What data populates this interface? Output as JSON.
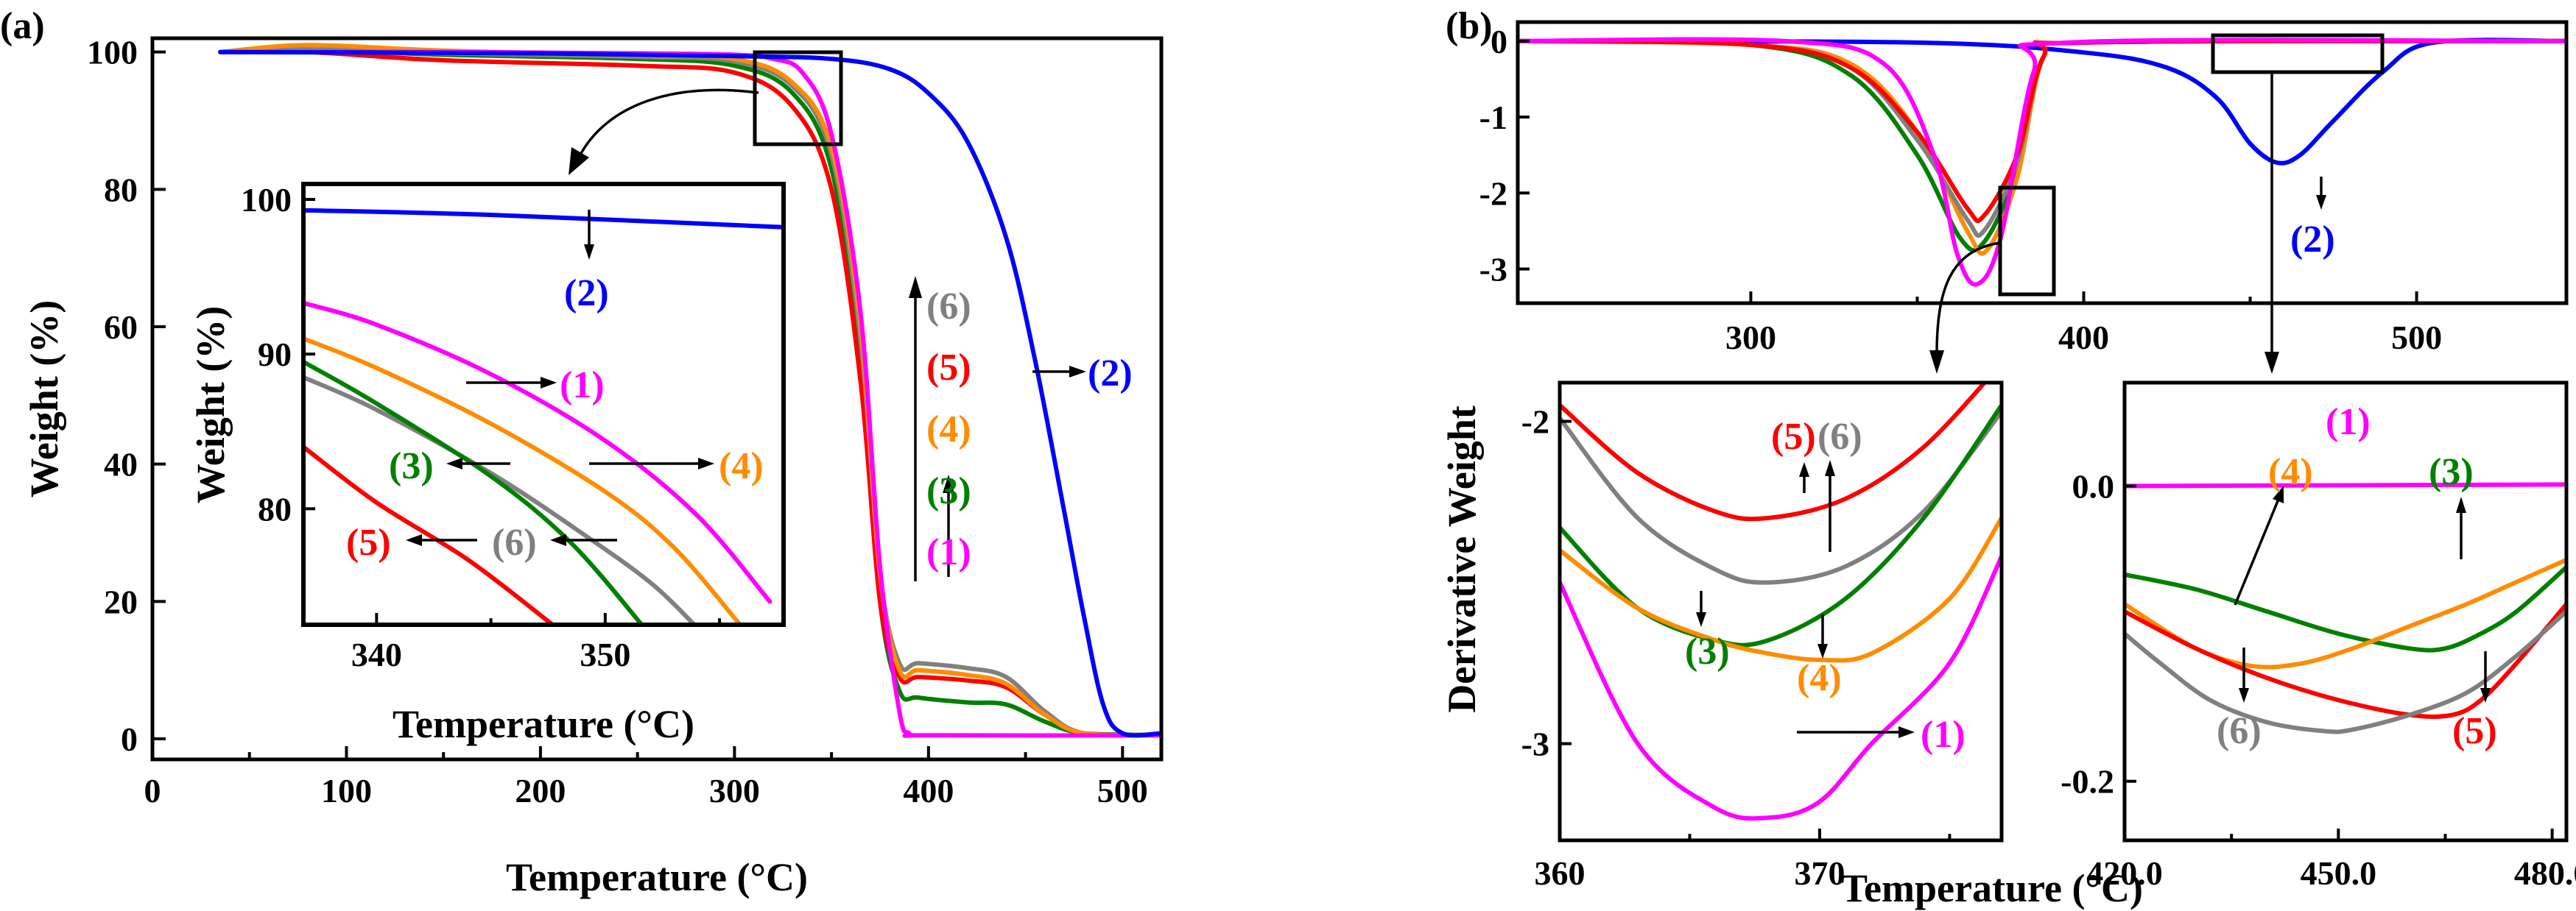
{
  "figure": {
    "panel_a_letter": "(a)",
    "panel_b_letter": "(b)"
  },
  "colors": {
    "1": "#ff00ff",
    "2": "#0000ff",
    "3": "#008000",
    "4": "#ff8c00",
    "5": "#ff0000",
    "6": "#808080"
  },
  "series_labels": [
    "(1)",
    "(2)",
    "(3)",
    "(4)",
    "(5)",
    "(6)"
  ],
  "chart_data": [
    {
      "id": "a-main",
      "type": "line",
      "title": "",
      "xlabel": "Temperature (°C)",
      "ylabel": "Weight (%)",
      "xlim": [
        0,
        520
      ],
      "ylim": [
        -3,
        102
      ],
      "xticks": [
        0,
        100,
        200,
        300,
        400,
        500
      ],
      "yticks": [
        0,
        20,
        40,
        60,
        80,
        100
      ],
      "series": [
        {
          "name": "(3)",
          "x": [
            35,
            80,
            150,
            250,
            300,
            330,
            350,
            365,
            375,
            385,
            395,
            420,
            440,
            460,
            480,
            520
          ],
          "y": [
            100,
            100.3,
            99.6,
            99,
            98,
            94,
            83,
            55,
            20,
            7,
            6,
            5.3,
            5,
            2.5,
            0.8,
            0.6
          ]
        },
        {
          "name": "(5)",
          "x": [
            35,
            80,
            150,
            250,
            300,
            330,
            350,
            365,
            375,
            385,
            395,
            420,
            440,
            460,
            480,
            520
          ],
          "y": [
            100,
            100,
            98.8,
            98,
            97,
            92,
            80,
            52,
            20,
            9,
            9,
            8.5,
            7.5,
            3.5,
            0.8,
            0.6
          ]
        },
        {
          "name": "(6)",
          "x": [
            35,
            80,
            150,
            250,
            300,
            330,
            350,
            365,
            375,
            385,
            395,
            420,
            440,
            460,
            480,
            520
          ],
          "y": [
            100,
            100.4,
            99.8,
            99.3,
            98.6,
            95,
            85,
            58,
            24,
            11,
            11,
            10.3,
            9,
            4,
            0.8,
            0.6
          ]
        },
        {
          "name": "(4)",
          "x": [
            35,
            80,
            150,
            250,
            300,
            330,
            350,
            365,
            375,
            385,
            395,
            420,
            440,
            460,
            480,
            520
          ],
          "y": [
            100,
            101,
            100.2,
            99.5,
            99,
            95.5,
            86,
            60,
            24,
            10,
            10,
            9.3,
            8,
            3.5,
            0.8,
            0.6
          ]
        },
        {
          "name": "(1)",
          "x": [
            35,
            150,
            250,
            300,
            320,
            335,
            350,
            365,
            375,
            385,
            390,
            400,
            520
          ],
          "y": [
            100,
            100,
            99.8,
            99.6,
            99,
            97,
            88,
            62,
            25,
            4,
            0.8,
            0.5,
            0.5
          ]
        },
        {
          "name": "(2)",
          "x": [
            35,
            200,
            300,
            350,
            380,
            400,
            420,
            440,
            455,
            470,
            480,
            490,
            500,
            520
          ],
          "y": [
            100,
            99.8,
            99.4,
            99,
            97.5,
            94,
            87,
            73,
            55,
            33,
            18,
            5,
            0.8,
            0.8
          ]
        }
      ],
      "annotations": [
        "(2)",
        "(6)",
        "(5)",
        "(4)",
        "(3)",
        "(1)"
      ]
    },
    {
      "id": "a-inset",
      "type": "line",
      "xlabel": "Temperature (°C)",
      "ylabel": "Weight (%)",
      "xlim": [
        336.8,
        357.8
      ],
      "ylim": [
        72.5,
        101
      ],
      "xticks": [
        340,
        350
      ],
      "yticks": [
        80,
        90,
        100
      ],
      "series": [
        {
          "name": "(2)",
          "x": [
            336.8,
            345,
            357.8
          ],
          "y": [
            99.3,
            99,
            98.2
          ]
        },
        {
          "name": "(1)",
          "x": [
            336.8,
            340,
            345,
            350,
            354,
            357.2
          ],
          "y": [
            93.3,
            91.9,
            88.7,
            84.4,
            79.6,
            74
          ]
        },
        {
          "name": "(4)",
          "x": [
            336.8,
            340,
            345,
            350,
            353,
            355.9
          ],
          "y": [
            91,
            89.1,
            85.5,
            81.1,
            77.5,
            72.5
          ]
        },
        {
          "name": "(6)",
          "x": [
            336.8,
            340,
            345,
            349,
            352,
            353.9
          ],
          "y": [
            88.5,
            86.4,
            82.3,
            78.4,
            75.2,
            72.5
          ]
        },
        {
          "name": "(3)",
          "x": [
            336.8,
            340,
            345,
            348.5,
            351.6
          ],
          "y": [
            89.5,
            86.8,
            82.1,
            77.8,
            72.5
          ]
        },
        {
          "name": "(5)",
          "x": [
            336.8,
            340,
            344,
            347.7
          ],
          "y": [
            84,
            80.4,
            76.7,
            72.5
          ]
        }
      ]
    },
    {
      "id": "b-top",
      "type": "line",
      "xlabel": "",
      "ylabel": "Derivative Weight",
      "xlim": [
        230,
        545
      ],
      "ylim": [
        -3.45,
        0.25
      ],
      "xticks": [
        300,
        400,
        500
      ],
      "yticks": [
        0,
        -1,
        -2,
        -3
      ],
      "series": [
        {
          "name": "(2)",
          "x": [
            230,
            350,
            400,
            425,
            440,
            450,
            458,
            465,
            475,
            490,
            505,
            545
          ],
          "y": [
            0,
            -0.02,
            -0.15,
            -0.35,
            -0.75,
            -1.35,
            -1.6,
            -1.5,
            -1.05,
            -0.4,
            -0.02,
            0
          ]
        },
        {
          "name": "(3)",
          "x": [
            230,
            300,
            330,
            350,
            363,
            370,
            380,
            388,
            400,
            545
          ],
          "y": [
            0,
            -0.05,
            -0.45,
            -1.5,
            -2.6,
            -2.65,
            -1.7,
            -0.2,
            -0.02,
            0
          ]
        },
        {
          "name": "(4)",
          "x": [
            230,
            300,
            330,
            350,
            365,
            371,
            380,
            388,
            400,
            545
          ],
          "y": [
            0,
            -0.05,
            -0.3,
            -1.2,
            -2.5,
            -2.75,
            -1.8,
            -0.2,
            -0.02,
            0
          ]
        },
        {
          "name": "(6)",
          "x": [
            230,
            300,
            330,
            350,
            365,
            370,
            380,
            388,
            400,
            545
          ],
          "y": [
            0,
            -0.05,
            -0.35,
            -1.3,
            -2.35,
            -2.5,
            -1.6,
            -0.2,
            -0.02,
            0
          ]
        },
        {
          "name": "(5)",
          "x": [
            230,
            300,
            330,
            350,
            365,
            370,
            380,
            388,
            400,
            545
          ],
          "y": [
            0,
            -0.05,
            -0.35,
            -1.2,
            -2.2,
            -2.3,
            -1.5,
            -0.2,
            -0.02,
            0
          ]
        },
        {
          "name": "(1)",
          "x": [
            230,
            310,
            340,
            355,
            362,
            368,
            375,
            385,
            395,
            545
          ],
          "y": [
            0,
            0,
            -0.3,
            -1.5,
            -2.8,
            -3.2,
            -2.6,
            -0.4,
            -0.02,
            0
          ]
        }
      ],
      "annotations": [
        "(2)"
      ]
    },
    {
      "id": "b-zoom-left",
      "type": "line",
      "xlabel": "Temperature (°C)",
      "ylabel": "Derivative Weight",
      "xlim": [
        360,
        377
      ],
      "ylim": [
        -3.3,
        -1.88
      ],
      "xticks": [
        360,
        370
      ],
      "yticks": [
        -2,
        -3
      ],
      "series": [
        {
          "name": "(5)",
          "x": [
            360,
            363,
            366,
            368,
            371,
            374,
            377
          ],
          "y": [
            -1.95,
            -2.16,
            -2.28,
            -2.3,
            -2.24,
            -2.08,
            -1.82
          ]
        },
        {
          "name": "(6)",
          "x": [
            360,
            363,
            366,
            368,
            371,
            374,
            377
          ],
          "y": [
            -1.99,
            -2.3,
            -2.46,
            -2.5,
            -2.45,
            -2.28,
            -1.97
          ]
        },
        {
          "name": "(3)",
          "x": [
            360,
            363,
            366,
            368,
            371,
            374,
            377
          ],
          "y": [
            -2.33,
            -2.58,
            -2.68,
            -2.68,
            -2.55,
            -2.3,
            -1.95
          ]
        },
        {
          "name": "(4)",
          "x": [
            360,
            363,
            366,
            368,
            370,
            372,
            375,
            377
          ],
          "y": [
            -2.4,
            -2.58,
            -2.68,
            -2.72,
            -2.74,
            -2.72,
            -2.55,
            -2.3
          ]
        },
        {
          "name": "(1)",
          "x": [
            360,
            363,
            366,
            368,
            370,
            372,
            375,
            377
          ],
          "y": [
            -2.5,
            -3.0,
            -3.2,
            -3.23,
            -3.18,
            -3.0,
            -2.75,
            -2.42
          ]
        }
      ],
      "annotations": [
        "(5)",
        "(6)",
        "(3)",
        "(4)",
        "(1)"
      ]
    },
    {
      "id": "b-zoom-right",
      "type": "line",
      "xlabel": "Temperature (°C)",
      "ylabel": "",
      "xlim": [
        420,
        482
      ],
      "ylim": [
        -0.24,
        0.07
      ],
      "xticks": [
        420,
        450,
        480
      ],
      "yticks": [
        0.0,
        -0.2
      ],
      "series": [
        {
          "name": "(1)",
          "x": [
            420,
            482
          ],
          "y": [
            0,
            0.001
          ]
        },
        {
          "name": "(3)",
          "x": [
            420,
            430,
            440,
            450,
            460,
            465,
            470,
            475,
            482
          ],
          "y": [
            -0.06,
            -0.07,
            -0.085,
            -0.1,
            -0.11,
            -0.11,
            -0.1,
            -0.085,
            -0.055
          ]
        },
        {
          "name": "(4)",
          "x": [
            420,
            430,
            438,
            445,
            452,
            460,
            468,
            475,
            482
          ],
          "y": [
            -0.08,
            -0.11,
            -0.122,
            -0.12,
            -0.11,
            -0.095,
            -0.08,
            -0.065,
            -0.05
          ]
        },
        {
          "name": "(5)",
          "x": [
            420,
            430,
            440,
            450,
            460,
            466,
            470,
            475,
            482
          ],
          "y": [
            -0.085,
            -0.11,
            -0.13,
            -0.145,
            -0.155,
            -0.155,
            -0.145,
            -0.12,
            -0.08
          ]
        },
        {
          "name": "(6)",
          "x": [
            420,
            425,
            432,
            440,
            448,
            452,
            460,
            468,
            475,
            482
          ],
          "y": [
            -0.1,
            -0.12,
            -0.145,
            -0.16,
            -0.166,
            -0.165,
            -0.155,
            -0.14,
            -0.115,
            -0.085
          ]
        }
      ],
      "annotations": [
        "(1)",
        "(4)",
        "(3)",
        "(6)",
        "(5)"
      ]
    }
  ]
}
